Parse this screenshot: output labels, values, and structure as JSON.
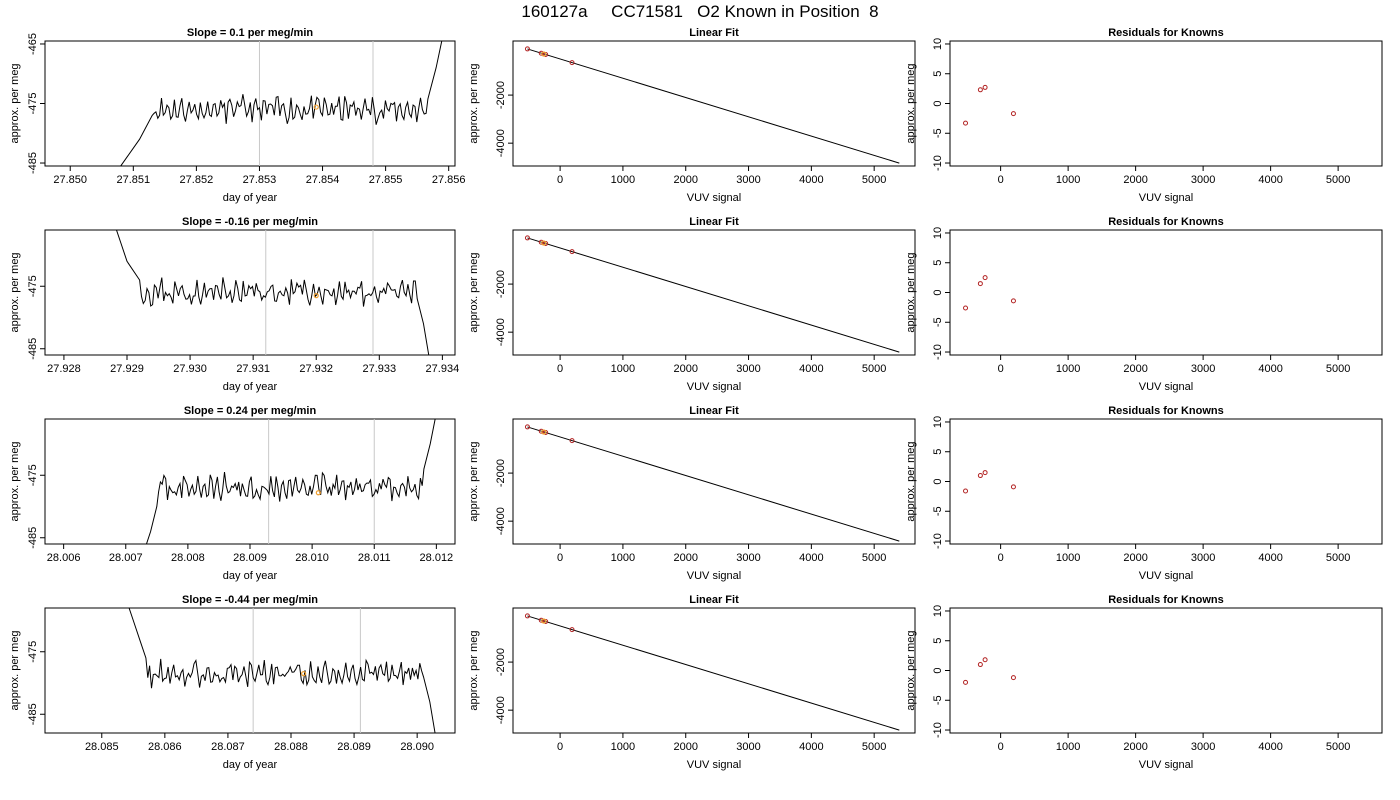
{
  "page_title": "160127a     CC71581   O2 Known in Position  8",
  "colors": {
    "trace": "#000000",
    "marker_vline": "#c8c8c8",
    "known_point": "#b22222",
    "sample_point": "#f0a030",
    "fit_line": "#000000"
  },
  "chart_data": [
    {
      "type": "line",
      "panel": "trace-1",
      "title": "Slope =  0.1  per meg/min",
      "xlabel": "day of year",
      "ylabel": "approx. per meg",
      "xlim": [
        27.8496,
        27.8561
      ],
      "ylim": [
        -485.5,
        -464.5
      ],
      "xticks": [
        "27.850",
        "27.851",
        "27.852",
        "27.853",
        "27.854",
        "27.855",
        "27.856"
      ],
      "yticks": [
        "-485",
        "-475",
        "-465"
      ],
      "markers_x": [
        27.853,
        27.8548
      ],
      "sample_point": {
        "x": 27.8539,
        "y": -475.6
      },
      "trace": {
        "x_start": 27.8507,
        "x_end": 27.8559,
        "baseline": -476,
        "amp": 1.6,
        "seed": 11,
        "tail_start": [
          {
            "x": 27.8507,
            "y": -487
          },
          {
            "x": 27.8509,
            "y": -484
          },
          {
            "x": 27.8511,
            "y": -481
          },
          {
            "x": 27.8513,
            "y": -477
          }
        ],
        "tail_end": [
          {
            "x": 27.8557,
            "y": -473
          },
          {
            "x": 27.8558,
            "y": -469
          },
          {
            "x": 27.8559,
            "y": -464
          }
        ]
      }
    },
    {
      "type": "scatter",
      "panel": "fit-1",
      "title": "Linear Fit",
      "xlabel": "VUV signal",
      "ylabel": "approx. per meg",
      "xlim": [
        -750,
        5650
      ],
      "ylim": [
        -4950,
        250
      ],
      "xticks": [
        "0",
        "1000",
        "2000",
        "3000",
        "4000",
        "5000"
      ],
      "yticks": [
        "-4000",
        "-2000"
      ],
      "ytick_values": [
        -4000,
        -2000
      ],
      "fit_line": {
        "x": [
          -520,
          5400
        ],
        "y": [
          -80,
          -4830
        ]
      },
      "knowns": [
        {
          "x": -520,
          "y": -80
        },
        {
          "x": -300,
          "y": -260
        },
        {
          "x": -230,
          "y": -310
        },
        {
          "x": 190,
          "y": -650
        }
      ],
      "sample": {
        "x": -260,
        "y": -290
      }
    },
    {
      "type": "scatter",
      "panel": "resid-1",
      "title": "Residuals for Knowns",
      "xlabel": "VUV signal",
      "ylabel": "approx. per meg",
      "xlim": [
        -750,
        5650
      ],
      "ylim": [
        -10.5,
        10.5
      ],
      "xticks": [
        "0",
        "1000",
        "2000",
        "3000",
        "4000",
        "5000"
      ],
      "yticks": [
        "-10",
        "-5",
        "0",
        "5",
        "10"
      ],
      "ytick_values": [
        -10,
        -5,
        0,
        5,
        10
      ],
      "points": [
        {
          "x": -520,
          "y": -3.3
        },
        {
          "x": -300,
          "y": 2.3
        },
        {
          "x": -230,
          "y": 2.7
        },
        {
          "x": 190,
          "y": -1.7
        }
      ]
    },
    {
      "type": "line",
      "panel": "trace-2",
      "title": "Slope =  -0.16  per meg/min",
      "xlabel": "day of year",
      "ylabel": "approx. per meg",
      "xlim": [
        27.9277,
        27.9342
      ],
      "ylim": [
        -486,
        -466
      ],
      "xticks": [
        "27.928",
        "27.929",
        "27.930",
        "27.931",
        "27.932",
        "27.933",
        "27.934"
      ],
      "yticks": [
        "-485",
        "-475"
      ],
      "markers_x": [
        27.9312,
        27.9329
      ],
      "sample_point": {
        "x": 27.932,
        "y": -476.5
      },
      "trace": {
        "x_start": 27.9288,
        "x_end": 27.9338,
        "baseline": -476,
        "amp": 1.6,
        "seed": 23,
        "tail_start": [
          {
            "x": 27.9288,
            "y": -465
          },
          {
            "x": 27.9289,
            "y": -468
          },
          {
            "x": 27.929,
            "y": -471
          },
          {
            "x": 27.9292,
            "y": -474
          }
        ],
        "tail_end": [
          {
            "x": 27.9336,
            "y": -477
          },
          {
            "x": 27.9337,
            "y": -481
          },
          {
            "x": 27.9338,
            "y": -487
          }
        ]
      }
    },
    {
      "type": "scatter",
      "panel": "fit-2",
      "title": "Linear Fit",
      "xlabel": "VUV signal",
      "ylabel": "approx. per meg",
      "xlim": [
        -750,
        5650
      ],
      "ylim": [
        -4950,
        250
      ],
      "xticks": [
        "0",
        "1000",
        "2000",
        "3000",
        "4000",
        "5000"
      ],
      "yticks": [
        "-4000",
        "-2000"
      ],
      "ytick_values": [
        -4000,
        -2000
      ],
      "fit_line": {
        "x": [
          -520,
          5400
        ],
        "y": [
          -80,
          -4830
        ]
      },
      "knowns": [
        {
          "x": -520,
          "y": -80
        },
        {
          "x": -300,
          "y": -260
        },
        {
          "x": -230,
          "y": -310
        },
        {
          "x": 190,
          "y": -650
        }
      ],
      "sample": {
        "x": -260,
        "y": -290
      }
    },
    {
      "type": "scatter",
      "panel": "resid-2",
      "title": "Residuals for Knowns",
      "xlabel": "VUV signal",
      "ylabel": "approx. per meg",
      "xlim": [
        -750,
        5650
      ],
      "ylim": [
        -10.5,
        10.5
      ],
      "xticks": [
        "0",
        "1000",
        "2000",
        "3000",
        "4000",
        "5000"
      ],
      "yticks": [
        "-10",
        "-5",
        "0",
        "5",
        "10"
      ],
      "ytick_values": [
        -10,
        -5,
        0,
        5,
        10
      ],
      "points": [
        {
          "x": -520,
          "y": -2.6
        },
        {
          "x": -300,
          "y": 1.5
        },
        {
          "x": -230,
          "y": 2.5
        },
        {
          "x": 190,
          "y": -1.4
        }
      ]
    },
    {
      "type": "line",
      "panel": "trace-3",
      "title": "Slope =  0.24  per meg/min",
      "xlabel": "day of year",
      "ylabel": "approx. per meg",
      "xlim": [
        28.0057,
        28.0123
      ],
      "ylim": [
        -486,
        -466
      ],
      "xticks": [
        "28.006",
        "28.007",
        "28.008",
        "28.009",
        "28.010",
        "28.011",
        "28.012"
      ],
      "yticks": [
        "-485",
        "-475"
      ],
      "markers_x": [
        28.0093,
        28.011
      ],
      "sample_point": {
        "x": 28.0101,
        "y": -477.8
      },
      "trace": {
        "x_start": 28.0073,
        "x_end": 28.012,
        "baseline": -477,
        "amp": 1.6,
        "seed": 37,
        "tail_start": [
          {
            "x": 28.0073,
            "y": -487
          },
          {
            "x": 28.0074,
            "y": -484
          },
          {
            "x": 28.0075,
            "y": -480
          }
        ],
        "tail_end": [
          {
            "x": 28.0118,
            "y": -474
          },
          {
            "x": 28.0119,
            "y": -470
          },
          {
            "x": 28.012,
            "y": -465
          }
        ]
      }
    },
    {
      "type": "scatter",
      "panel": "fit-3",
      "title": "Linear Fit",
      "xlabel": "VUV signal",
      "ylabel": "approx. per meg",
      "xlim": [
        -750,
        5650
      ],
      "ylim": [
        -4950,
        250
      ],
      "xticks": [
        "0",
        "1000",
        "2000",
        "3000",
        "4000",
        "5000"
      ],
      "yticks": [
        "-4000",
        "-2000"
      ],
      "ytick_values": [
        -4000,
        -2000
      ],
      "fit_line": {
        "x": [
          -520,
          5400
        ],
        "y": [
          -80,
          -4830
        ]
      },
      "knowns": [
        {
          "x": -520,
          "y": -80
        },
        {
          "x": -300,
          "y": -260
        },
        {
          "x": -230,
          "y": -310
        },
        {
          "x": 190,
          "y": -650
        }
      ],
      "sample": {
        "x": -260,
        "y": -290
      }
    },
    {
      "type": "scatter",
      "panel": "resid-3",
      "title": "Residuals for Knowns",
      "xlabel": "VUV signal",
      "ylabel": "approx. per meg",
      "xlim": [
        -750,
        5650
      ],
      "ylim": [
        -10.5,
        10.5
      ],
      "xticks": [
        "0",
        "1000",
        "2000",
        "3000",
        "4000",
        "5000"
      ],
      "yticks": [
        "-10",
        "-5",
        "0",
        "5",
        "10"
      ],
      "ytick_values": [
        -10,
        -5,
        0,
        5,
        10
      ],
      "points": [
        {
          "x": -520,
          "y": -1.6
        },
        {
          "x": -300,
          "y": 1.0
        },
        {
          "x": -230,
          "y": 1.5
        },
        {
          "x": 190,
          "y": -0.9
        }
      ]
    },
    {
      "type": "line",
      "panel": "trace-4",
      "title": "Slope =  -0.44  per meg/min",
      "xlabel": "day of year",
      "ylabel": "approx. per meg",
      "xlim": [
        28.0841,
        28.0906
      ],
      "ylim": [
        -488,
        -468
      ],
      "xticks": [
        "28.085",
        "28.086",
        "28.087",
        "28.088",
        "28.089",
        "28.090"
      ],
      "yticks": [
        "-485",
        "-475"
      ],
      "markers_x": [
        28.0874,
        28.0891
      ],
      "sample_point": {
        "x": 28.0882,
        "y": -478.5
      },
      "trace": {
        "x_start": 28.0854,
        "x_end": 28.0903,
        "baseline": -478.5,
        "amp": 1.6,
        "seed": 53,
        "tail_start": [
          {
            "x": 28.0854,
            "y": -467
          },
          {
            "x": 28.0855,
            "y": -470
          },
          {
            "x": 28.0856,
            "y": -473
          },
          {
            "x": 28.0857,
            "y": -476
          }
        ],
        "tail_end": [
          {
            "x": 28.0901,
            "y": -479
          },
          {
            "x": 28.0902,
            "y": -483
          },
          {
            "x": 28.0903,
            "y": -489
          }
        ]
      }
    },
    {
      "type": "scatter",
      "panel": "fit-4",
      "title": "Linear Fit",
      "xlabel": "VUV signal",
      "ylabel": "approx. per meg",
      "xlim": [
        -750,
        5650
      ],
      "ylim": [
        -4950,
        250
      ],
      "xticks": [
        "0",
        "1000",
        "2000",
        "3000",
        "4000",
        "5000"
      ],
      "yticks": [
        "-4000",
        "-2000"
      ],
      "ytick_values": [
        -4000,
        -2000
      ],
      "fit_line": {
        "x": [
          -520,
          5400
        ],
        "y": [
          -80,
          -4830
        ]
      },
      "knowns": [
        {
          "x": -520,
          "y": -80
        },
        {
          "x": -300,
          "y": -260
        },
        {
          "x": -230,
          "y": -310
        },
        {
          "x": 190,
          "y": -650
        }
      ],
      "sample": {
        "x": -260,
        "y": -290
      }
    },
    {
      "type": "scatter",
      "panel": "resid-4",
      "title": "Residuals for Knowns",
      "xlabel": "VUV signal",
      "ylabel": "approx. per meg",
      "xlim": [
        -750,
        5650
      ],
      "ylim": [
        -10.5,
        10.5
      ],
      "xticks": [
        "0",
        "1000",
        "2000",
        "3000",
        "4000",
        "5000"
      ],
      "yticks": [
        "-10",
        "-5",
        "0",
        "5",
        "10"
      ],
      "ytick_values": [
        -10,
        -5,
        0,
        5,
        10
      ],
      "points": [
        {
          "x": -520,
          "y": -2.0
        },
        {
          "x": -300,
          "y": 1.0
        },
        {
          "x": -230,
          "y": 1.8
        },
        {
          "x": 190,
          "y": -1.2
        }
      ]
    }
  ]
}
